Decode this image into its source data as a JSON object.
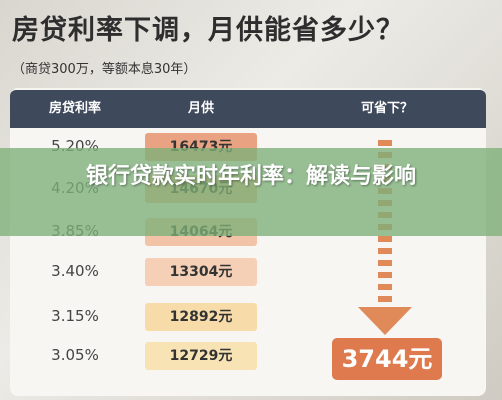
{
  "header": {
    "title": "房贷利率下调，月供能省多少？",
    "subtitle": "（商贷300万，等额本息30年）"
  },
  "table": {
    "headers": [
      "房贷利率",
      "月供",
      "可省下？"
    ],
    "rows": [
      [
        "5.20%",
        "16473元"
      ],
      [
        "4.20%",
        "14670元"
      ],
      [
        "3.85%",
        "14064元"
      ],
      [
        "3.40%",
        "13304元"
      ],
      [
        "3.15%",
        "12892元"
      ],
      [
        "3.05%",
        "12729元"
      ]
    ],
    "saving": "3744元"
  },
  "overlay": {
    "title": "银行贷款实时年利率：解读与影响"
  }
}
